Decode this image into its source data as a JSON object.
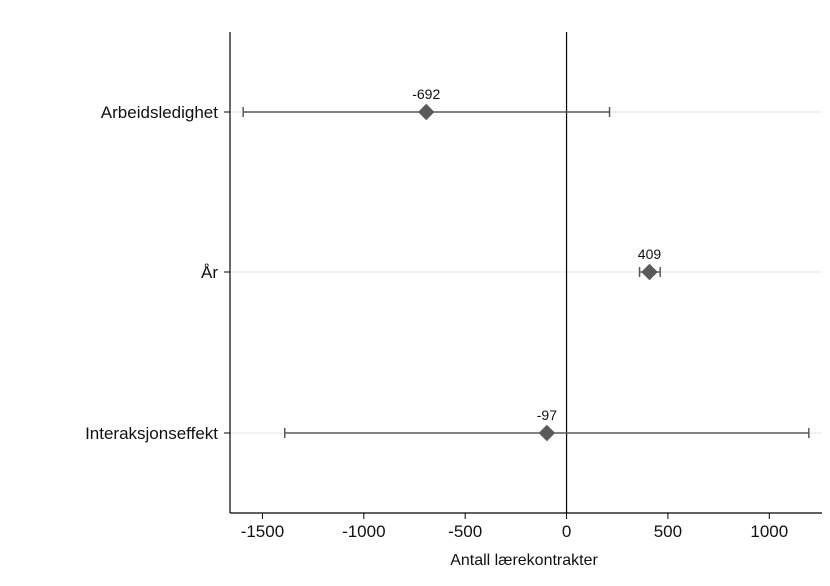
{
  "chart_data": {
    "type": "scatter",
    "subtype": "coefficient-plot",
    "xlabel": "Antall lærekontrakter",
    "xlim": [
      -1660,
      1260
    ],
    "xticks": [
      -1500,
      -1000,
      -500,
      0,
      500,
      1000
    ],
    "xtick_labels": [
      "-1500",
      "-1000",
      "-500",
      "0",
      "500",
      "1000"
    ],
    "reference_line_x": 0,
    "grid": "horizontal at categories",
    "legend": "none",
    "categories": [
      "Arbeidsledighet",
      "År",
      "Interaksjonseffekt"
    ],
    "series": [
      {
        "values": [
          -692,
          409,
          -97
        ],
        "labels": [
          "-692",
          "409",
          "-97"
        ],
        "ci_low": [
          -1595,
          360,
          -1390
        ],
        "ci_high": [
          212,
          462,
          1195
        ]
      }
    ]
  },
  "colors": {
    "marker": "#5a5a5a",
    "errorbar": "#5a5a5a",
    "axis": "#000000",
    "gridline": "#e6e6e6"
  }
}
